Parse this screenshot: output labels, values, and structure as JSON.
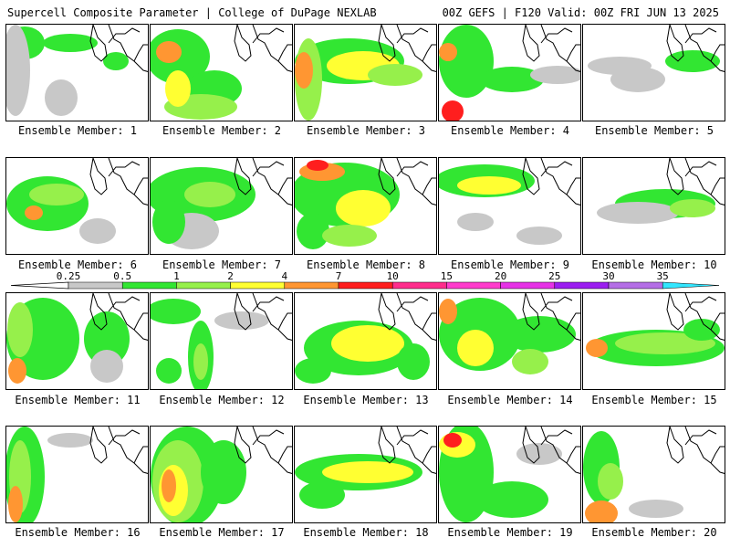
{
  "header": {
    "title_left": "Supercell Composite Parameter | College of DuPage NEXLAB",
    "title_right": "00Z GEFS | F120 Valid: 00Z FRI JUN 13 2025"
  },
  "members": [
    {
      "label": "Ensemble Member: 1"
    },
    {
      "label": "Ensemble Member: 2"
    },
    {
      "label": "Ensemble Member: 3"
    },
    {
      "label": "Ensemble Member: 4"
    },
    {
      "label": "Ensemble Member: 5"
    },
    {
      "label": "Ensemble Member: 6"
    },
    {
      "label": "Ensemble Member: 7"
    },
    {
      "label": "Ensemble Member: 8"
    },
    {
      "label": "Ensemble Member: 9"
    },
    {
      "label": "Ensemble Member: 10"
    },
    {
      "label": "Ensemble Member: 11"
    },
    {
      "label": "Ensemble Member: 12"
    },
    {
      "label": "Ensemble Member: 13"
    },
    {
      "label": "Ensemble Member: 14"
    },
    {
      "label": "Ensemble Member: 15"
    },
    {
      "label": "Ensemble Member: 16"
    },
    {
      "label": "Ensemble Member: 17"
    },
    {
      "label": "Ensemble Member: 18"
    },
    {
      "label": "Ensemble Member: 19"
    },
    {
      "label": "Ensemble Member: 20"
    }
  ],
  "colorbar": {
    "levels": [
      "0.25",
      "0.5",
      "1",
      "2",
      "4",
      "7",
      "10",
      "15",
      "20",
      "25",
      "30",
      "35"
    ],
    "colors": [
      "#c8c8c8",
      "#32e632",
      "#96f04b",
      "#ffff32",
      "#ff9632",
      "#ff1e1e",
      "#ff2d8c",
      "#ff3ccc",
      "#e632e6",
      "#9b1ef0",
      "#b46ee6",
      "#32e6ff"
    ]
  }
}
